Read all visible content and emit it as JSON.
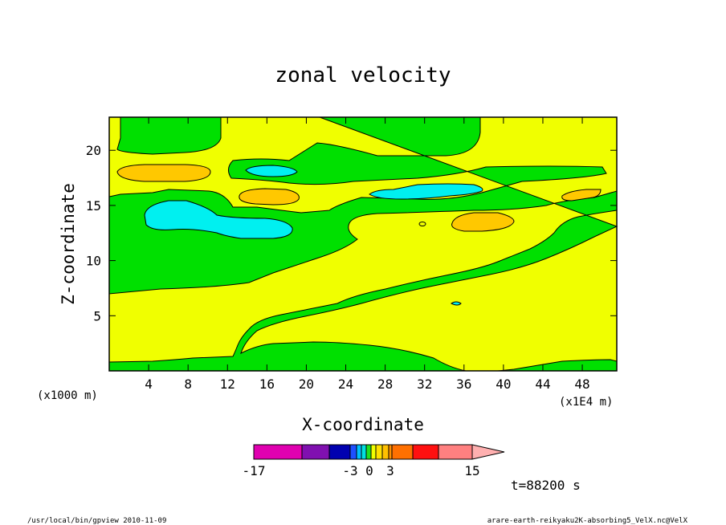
{
  "chart_data": {
    "type": "heatmap",
    "title": "zonal velocity",
    "xlabel": "X-coordinate",
    "ylabel": "Z-coordinate",
    "x_unit_note": "(x1E4 m)",
    "y_unit_note": "(x1000 m)",
    "xlim": [
      0,
      51.5
    ],
    "ylim": [
      0,
      23
    ],
    "x_ticks": [
      "4",
      "8",
      "12",
      "16",
      "20",
      "24",
      "28",
      "32",
      "36",
      "40",
      "44",
      "48"
    ],
    "y_ticks": [
      "5",
      "10",
      "15",
      "20"
    ],
    "x_tick_values": [
      4,
      8,
      12,
      16,
      20,
      24,
      28,
      32,
      36,
      40,
      44,
      48
    ],
    "y_tick_values": [
      5,
      10,
      15,
      20
    ],
    "colorbar": {
      "min_label": "-17",
      "max_label": "15",
      "labels": [
        "-17",
        "-3",
        "0",
        "3",
        "15"
      ],
      "colors": [
        "#e000b0",
        "#8010b0",
        "#0000b0",
        "#1e50ff",
        "#00c0ff",
        "#00e0e0",
        "#20e020",
        "#f0ff00",
        "#ffe000",
        "#ffc000",
        "#ff9000",
        "#ff7000",
        "#ff1010",
        "#ff8080",
        "#ffb0b0"
      ]
    },
    "time_label": "t=88200 s"
  },
  "footer": {
    "left": "/usr/local/bin/gpview  2010-11-09",
    "right": "arare-earth-reikyaku2K-absorbing5_VelX.nc@VelX"
  },
  "colors": {
    "yellow": "#f0ff00",
    "green": "#00e000",
    "orange": "#ffc800",
    "cyan": "#00f0f0"
  }
}
